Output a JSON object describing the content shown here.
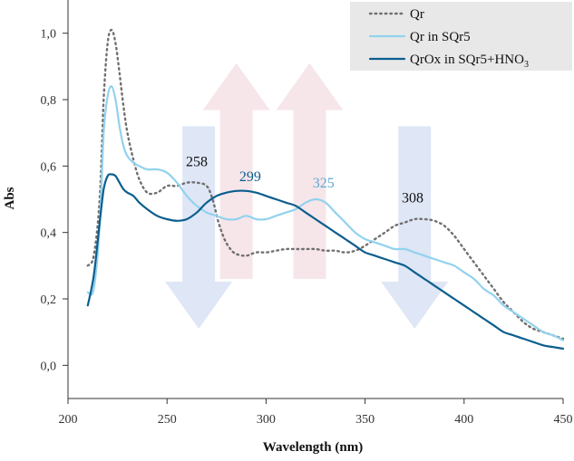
{
  "chart_data": {
    "type": "line",
    "xlabel": "Wavelength (nm)",
    "ylabel": "Abs",
    "xlim": [
      200,
      450
    ],
    "ylim": [
      -0.1,
      1.1
    ],
    "xticks": [
      200,
      250,
      300,
      350,
      400,
      450
    ],
    "yticks": [
      0.0,
      0.2,
      0.4,
      0.6,
      0.8,
      1.0
    ],
    "yticklabels": [
      "0,0",
      "0,2",
      "0,4",
      "0,6",
      "0,8",
      "1,0"
    ],
    "grid": false,
    "legend_position": "top-right",
    "series": [
      {
        "name": "Qr",
        "legend_label": "Qr",
        "color": "#707070",
        "style": "dotted",
        "x": [
          210,
          213,
          216,
          218,
          220,
          222,
          224,
          226,
          228,
          230,
          233,
          236,
          240,
          245,
          250,
          255,
          260,
          265,
          270,
          273,
          276,
          279,
          282,
          285,
          290,
          295,
          300,
          305,
          310,
          315,
          320,
          325,
          330,
          335,
          340,
          345,
          350,
          355,
          360,
          365,
          370,
          375,
          380,
          385,
          390,
          395,
          400,
          405,
          410,
          415,
          420,
          425,
          430,
          435,
          440,
          445,
          450
        ],
        "y": [
          0.3,
          0.33,
          0.5,
          0.8,
          0.97,
          1.01,
          0.97,
          0.88,
          0.78,
          0.7,
          0.62,
          0.56,
          0.52,
          0.52,
          0.54,
          0.54,
          0.55,
          0.55,
          0.54,
          0.5,
          0.43,
          0.38,
          0.35,
          0.335,
          0.33,
          0.34,
          0.34,
          0.345,
          0.35,
          0.35,
          0.35,
          0.35,
          0.345,
          0.345,
          0.34,
          0.345,
          0.36,
          0.38,
          0.4,
          0.42,
          0.43,
          0.44,
          0.44,
          0.435,
          0.42,
          0.39,
          0.35,
          0.31,
          0.27,
          0.23,
          0.19,
          0.16,
          0.13,
          0.11,
          0.1,
          0.09,
          0.08
        ]
      },
      {
        "name": "Qr in SQr5",
        "legend_label": "Qr in SQr5",
        "color": "#92d2ee",
        "style": "solid",
        "x": [
          210,
          213,
          216,
          218,
          220,
          222,
          224,
          226,
          228,
          230,
          233,
          236,
          240,
          245,
          250,
          255,
          260,
          265,
          270,
          275,
          280,
          285,
          290,
          295,
          300,
          305,
          310,
          315,
          320,
          325,
          330,
          335,
          340,
          345,
          350,
          355,
          360,
          365,
          370,
          375,
          380,
          385,
          390,
          395,
          400,
          405,
          410,
          415,
          420,
          425,
          430,
          435,
          440,
          445,
          450
        ],
        "y": [
          0.22,
          0.23,
          0.42,
          0.7,
          0.81,
          0.84,
          0.8,
          0.72,
          0.66,
          0.63,
          0.61,
          0.6,
          0.59,
          0.59,
          0.58,
          0.55,
          0.51,
          0.48,
          0.46,
          0.45,
          0.44,
          0.44,
          0.45,
          0.44,
          0.44,
          0.45,
          0.46,
          0.47,
          0.49,
          0.5,
          0.49,
          0.46,
          0.43,
          0.4,
          0.38,
          0.37,
          0.36,
          0.35,
          0.35,
          0.34,
          0.33,
          0.32,
          0.31,
          0.3,
          0.28,
          0.26,
          0.23,
          0.21,
          0.18,
          0.16,
          0.14,
          0.12,
          0.1,
          0.09,
          0.075
        ]
      },
      {
        "name": "QrOx in SQr5+HNO3",
        "legend_label": "QrOx in SQr5+HNO",
        "legend_subscript": "3",
        "color": "#0b5e8e",
        "style": "solid",
        "x": [
          210,
          213,
          216,
          218,
          220,
          222,
          224,
          226,
          228,
          230,
          233,
          236,
          240,
          245,
          250,
          255,
          260,
          265,
          270,
          275,
          280,
          285,
          290,
          295,
          300,
          305,
          310,
          315,
          320,
          325,
          330,
          335,
          340,
          345,
          350,
          355,
          360,
          365,
          370,
          375,
          380,
          385,
          390,
          395,
          400,
          405,
          410,
          415,
          420,
          425,
          430,
          435,
          440,
          445,
          450
        ],
        "y": [
          0.18,
          0.27,
          0.43,
          0.53,
          0.57,
          0.575,
          0.57,
          0.55,
          0.53,
          0.52,
          0.51,
          0.49,
          0.47,
          0.45,
          0.44,
          0.435,
          0.44,
          0.46,
          0.49,
          0.51,
          0.52,
          0.525,
          0.525,
          0.52,
          0.51,
          0.5,
          0.49,
          0.48,
          0.46,
          0.44,
          0.42,
          0.4,
          0.38,
          0.36,
          0.34,
          0.33,
          0.32,
          0.31,
          0.3,
          0.28,
          0.26,
          0.24,
          0.22,
          0.2,
          0.18,
          0.16,
          0.14,
          0.12,
          0.1,
          0.09,
          0.08,
          0.07,
          0.06,
          0.055,
          0.05
        ]
      }
    ],
    "annotations": [
      {
        "text": "258",
        "x": 265,
        "y": 0.6,
        "color": "#111111"
      },
      {
        "text": "299",
        "x": 292,
        "y": 0.555,
        "color": "#0b5e8e"
      },
      {
        "text": "325",
        "x": 329,
        "y": 0.535,
        "color": "#5ea8d6"
      },
      {
        "text": "308",
        "x": 374,
        "y": 0.49,
        "color": "#111111"
      }
    ],
    "arrows": [
      {
        "direction": "down",
        "x_center": 266,
        "y_top": 0.72,
        "y_bottom": 0.11,
        "color": "#dfe6f6"
      },
      {
        "direction": "up",
        "x_center": 285,
        "y_top": 0.91,
        "y_bottom": 0.26,
        "color": "#f6e6ea"
      },
      {
        "direction": "up",
        "x_center": 322,
        "y_top": 0.91,
        "y_bottom": 0.26,
        "color": "#f6e6ea"
      },
      {
        "direction": "down",
        "x_center": 375,
        "y_top": 0.72,
        "y_bottom": 0.11,
        "color": "#dfe6f6"
      }
    ]
  }
}
